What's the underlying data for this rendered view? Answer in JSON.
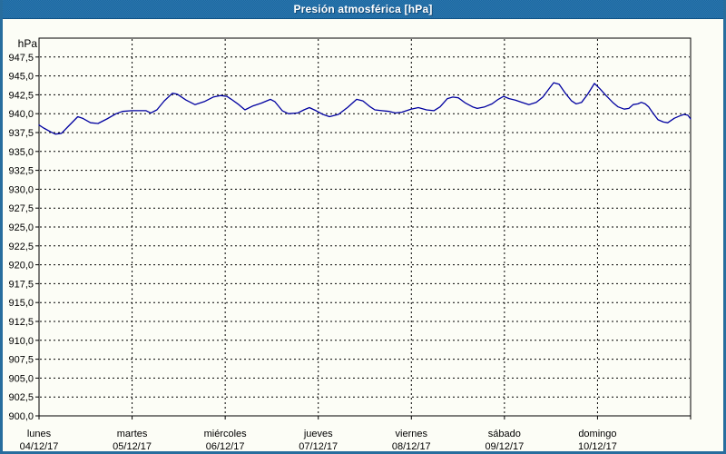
{
  "window": {
    "title": "Presión atmosférica [hPa]"
  },
  "colors": {
    "titlebar": "#1968a3",
    "titlebar_text": "#ffffff",
    "window_border": "#276d9e",
    "background": "#fcfdf6",
    "grid": "#000000",
    "axis": "#000000",
    "line": "#0000a0",
    "label_text": "#000000"
  },
  "chart_data": {
    "type": "line",
    "title": "Presión atmosférica [hPa]",
    "ylabel": "hPa",
    "xlabel": "",
    "ylim": [
      900,
      950
    ],
    "ytick_step": 2.5,
    "ytick_labels": [
      "900,0",
      "902,5",
      "905,0",
      "907,5",
      "910,0",
      "912,5",
      "915,0",
      "917,5",
      "920,0",
      "922,5",
      "925,0",
      "927,5",
      "930,0",
      "932,5",
      "935,0",
      "937,5",
      "940,0",
      "942,5",
      "945,0",
      "947,5"
    ],
    "grid": "dashed-both-axes",
    "legend_position": "none",
    "x_unit": "hours from Monday 00:00",
    "xlim": [
      0,
      168
    ],
    "x_categories": [
      {
        "day": "lunes",
        "date": "04/12/17"
      },
      {
        "day": "martes",
        "date": "05/12/17"
      },
      {
        "day": "miércoles",
        "date": "06/12/17"
      },
      {
        "day": "jueves",
        "date": "07/12/17"
      },
      {
        "day": "viernes",
        "date": "08/12/17"
      },
      {
        "day": "sábado",
        "date": "09/12/17"
      },
      {
        "day": "domingo",
        "date": "10/12/17"
      }
    ],
    "series": [
      {
        "name": "Presión atmosférica",
        "color": "#0000a0",
        "points": [
          [
            0,
            938.5
          ],
          [
            1.2,
            938.1
          ],
          [
            3,
            937.6
          ],
          [
            4.2,
            937.3
          ],
          [
            5.8,
            937.4
          ],
          [
            7.7,
            938.4
          ],
          [
            10,
            939.6
          ],
          [
            11.2,
            939.4
          ],
          [
            13.3,
            938.8
          ],
          [
            15.2,
            938.7
          ],
          [
            17.5,
            939.3
          ],
          [
            19.9,
            940.0
          ],
          [
            21.5,
            940.3
          ],
          [
            23.9,
            940.4
          ],
          [
            25.7,
            940.4
          ],
          [
            27.6,
            940.4
          ],
          [
            28.8,
            940.1
          ],
          [
            30.4,
            940.5
          ],
          [
            32.3,
            941.7
          ],
          [
            34.4,
            942.7
          ],
          [
            35.6,
            942.6
          ],
          [
            37.9,
            941.8
          ],
          [
            40.2,
            941.2
          ],
          [
            42.6,
            941.6
          ],
          [
            44.9,
            942.2
          ],
          [
            46.8,
            942.4
          ],
          [
            48.4,
            942.3
          ],
          [
            49.6,
            941.9
          ],
          [
            51.5,
            941.2
          ],
          [
            53.1,
            940.5
          ],
          [
            55,
            941.0
          ],
          [
            57.3,
            941.4
          ],
          [
            59.7,
            941.9
          ],
          [
            60.8,
            941.6
          ],
          [
            62.7,
            940.4
          ],
          [
            64.3,
            940.0
          ],
          [
            66.7,
            940.1
          ],
          [
            68.3,
            940.5
          ],
          [
            69.7,
            940.8
          ],
          [
            71.4,
            940.4
          ],
          [
            73.2,
            939.9
          ],
          [
            74.9,
            939.6
          ],
          [
            77.2,
            939.9
          ],
          [
            79.5,
            940.8
          ],
          [
            81.9,
            941.9
          ],
          [
            83.5,
            941.7
          ],
          [
            85.4,
            940.9
          ],
          [
            86.6,
            940.5
          ],
          [
            88.4,
            940.4
          ],
          [
            90.3,
            940.3
          ],
          [
            91.9,
            940.1
          ],
          [
            93.6,
            940.2
          ],
          [
            95.9,
            940.6
          ],
          [
            97.8,
            940.8
          ],
          [
            99.9,
            940.5
          ],
          [
            101.8,
            940.4
          ],
          [
            103.4,
            940.9
          ],
          [
            105.3,
            942.0
          ],
          [
            106.7,
            942.2
          ],
          [
            108.1,
            942.1
          ],
          [
            110,
            941.4
          ],
          [
            111.8,
            940.9
          ],
          [
            113,
            940.7
          ],
          [
            114.9,
            940.9
          ],
          [
            116.8,
            941.3
          ],
          [
            118.4,
            941.9
          ],
          [
            119.8,
            942.3
          ],
          [
            121.2,
            942.0
          ],
          [
            122.8,
            941.8
          ],
          [
            124.5,
            941.5
          ],
          [
            126.3,
            941.2
          ],
          [
            128.2,
            941.5
          ],
          [
            129.9,
            942.2
          ],
          [
            131.5,
            943.3
          ],
          [
            132.7,
            944.1
          ],
          [
            134.1,
            943.9
          ],
          [
            135.7,
            942.7
          ],
          [
            137.3,
            941.7
          ],
          [
            138.5,
            941.3
          ],
          [
            139.9,
            941.5
          ],
          [
            141.5,
            942.6
          ],
          [
            143.2,
            944.0
          ],
          [
            144.6,
            943.3
          ],
          [
            146.2,
            942.4
          ],
          [
            147.9,
            941.5
          ],
          [
            149.3,
            940.9
          ],
          [
            150.9,
            940.6
          ],
          [
            152.1,
            940.7
          ],
          [
            153.2,
            941.2
          ],
          [
            154.4,
            941.3
          ],
          [
            155.3,
            941.5
          ],
          [
            156.3,
            941.3
          ],
          [
            157.2,
            940.9
          ],
          [
            158.4,
            940.0
          ],
          [
            159.6,
            939.2
          ],
          [
            161,
            938.9
          ],
          [
            162.1,
            938.8
          ],
          [
            163.8,
            939.4
          ],
          [
            165.2,
            939.7
          ],
          [
            166.3,
            939.9
          ],
          [
            167.3,
            939.8
          ],
          [
            168,
            939.3
          ]
        ]
      }
    ]
  }
}
